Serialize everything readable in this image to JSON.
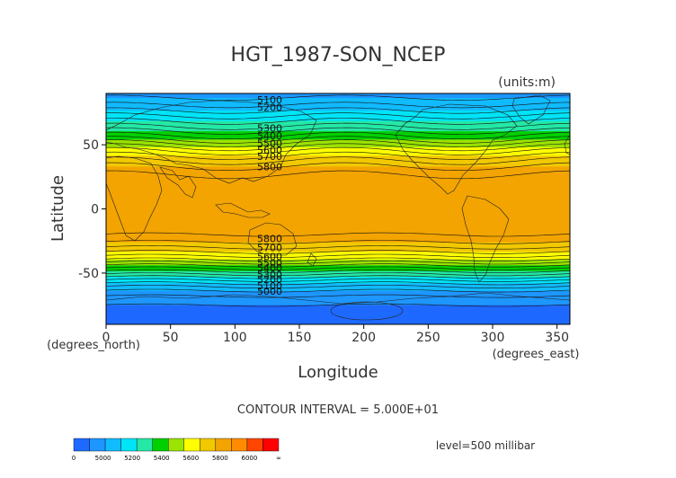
{
  "chart_data": {
    "type": "heatmap",
    "title": "HGT_1987-SON_NCEP",
    "units_label": "(units:m)",
    "xlabel": "Longitude",
    "ylabel": "Latitude",
    "x_units_label": "(degrees_east)",
    "y_units_label": "(degrees_north)",
    "xlim": [
      0,
      360
    ],
    "ylim": [
      -90,
      90
    ],
    "x_ticks": [
      {
        "value": 0,
        "label": "0"
      },
      {
        "value": 50,
        "label": "50"
      },
      {
        "value": 100,
        "label": "100"
      },
      {
        "value": 150,
        "label": "150"
      },
      {
        "value": 200,
        "label": "200"
      },
      {
        "value": 250,
        "label": "250"
      },
      {
        "value": 300,
        "label": "300"
      },
      {
        "value": 350,
        "label": "350"
      }
    ],
    "y_ticks": [
      {
        "value": 50,
        "label": "50"
      },
      {
        "value": 0,
        "label": "0"
      },
      {
        "value": -50,
        "label": "-50"
      }
    ],
    "contour_interval_text": "CONTOUR INTERVAL = 5.000E+01",
    "level_text": "level=500 millibar",
    "color_bins": [
      {
        "min": 0,
        "max": 5000,
        "color": "#1e69ff"
      },
      {
        "min": 5000,
        "max": 5100,
        "color": "#1e96ff"
      },
      {
        "min": 5100,
        "max": 5200,
        "color": "#11bbff"
      },
      {
        "min": 5200,
        "max": 5300,
        "color": "#00e4f7"
      },
      {
        "min": 5300,
        "max": 5400,
        "color": "#25e8a6"
      },
      {
        "min": 5400,
        "max": 5500,
        "color": "#00d000"
      },
      {
        "min": 5500,
        "max": 5600,
        "color": "#9be300"
      },
      {
        "min": 5600,
        "max": 5700,
        "color": "#ffff00"
      },
      {
        "min": 5700,
        "max": 5800,
        "color": "#f2c800"
      },
      {
        "min": 5800,
        "max": 5900,
        "color": "#f3a400"
      },
      {
        "min": 5900,
        "max": 6000,
        "color": "#ff8c00"
      },
      {
        "min": 6000,
        "max": 6100,
        "color": "#ff4600"
      },
      {
        "min": 6100,
        "max": 99999,
        "color": "#ff0000"
      }
    ],
    "colorbar_labels": [
      "0",
      "5000",
      "5200",
      "5400",
      "5600",
      "5800",
      "6000",
      "∞"
    ],
    "zonal_height_profile": [
      {
        "lat": 90,
        "hgt": 5080
      },
      {
        "lat": 85,
        "hgt": 5110
      },
      {
        "lat": 80,
        "hgt": 5160
      },
      {
        "lat": 75,
        "hgt": 5220
      },
      {
        "lat": 70,
        "hgt": 5280
      },
      {
        "lat": 65,
        "hgt": 5340
      },
      {
        "lat": 60,
        "hgt": 5410
      },
      {
        "lat": 55,
        "hgt": 5480
      },
      {
        "lat": 50,
        "hgt": 5570
      },
      {
        "lat": 45,
        "hgt": 5650
      },
      {
        "lat": 40,
        "hgt": 5720
      },
      {
        "lat": 35,
        "hgt": 5780
      },
      {
        "lat": 30,
        "hgt": 5830
      },
      {
        "lat": 25,
        "hgt": 5860
      },
      {
        "lat": 20,
        "hgt": 5880
      },
      {
        "lat": 10,
        "hgt": 5880
      },
      {
        "lat": 0,
        "hgt": 5880
      },
      {
        "lat": -10,
        "hgt": 5870
      },
      {
        "lat": -20,
        "hgt": 5850
      },
      {
        "lat": -25,
        "hgt": 5810
      },
      {
        "lat": -30,
        "hgt": 5750
      },
      {
        "lat": -35,
        "hgt": 5680
      },
      {
        "lat": -40,
        "hgt": 5590
      },
      {
        "lat": -45,
        "hgt": 5480
      },
      {
        "lat": -50,
        "hgt": 5370
      },
      {
        "lat": -55,
        "hgt": 5260
      },
      {
        "lat": -60,
        "hgt": 5160
      },
      {
        "lat": -65,
        "hgt": 5080
      },
      {
        "lat": -70,
        "hgt": 5030
      },
      {
        "lat": -75,
        "hgt": 5000
      },
      {
        "lat": -80,
        "hgt": 4990
      },
      {
        "lat": -90,
        "hgt": 4980
      }
    ],
    "contour_labels_shown": [
      {
        "text": "5100",
        "lat": 85
      },
      {
        "text": "5200",
        "lat": 79
      },
      {
        "text": "5300",
        "lat": 63
      },
      {
        "text": "5400",
        "lat": 57
      },
      {
        "text": "5500",
        "lat": 51
      },
      {
        "text": "5600",
        "lat": 46
      },
      {
        "text": "5700",
        "lat": 41
      },
      {
        "text": "5800",
        "lat": 33
      },
      {
        "text": "5800",
        "lat": -23
      },
      {
        "text": "5700",
        "lat": -30
      },
      {
        "text": "5600",
        "lat": -37
      },
      {
        "text": "5500",
        "lat": -42
      },
      {
        "text": "5400",
        "lat": -46
      },
      {
        "text": "5300",
        "lat": -51
      },
      {
        "text": "5200",
        "lat": -55
      },
      {
        "text": "5100",
        "lat": -60
      },
      {
        "text": "5000",
        "lat": -64
      }
    ]
  }
}
